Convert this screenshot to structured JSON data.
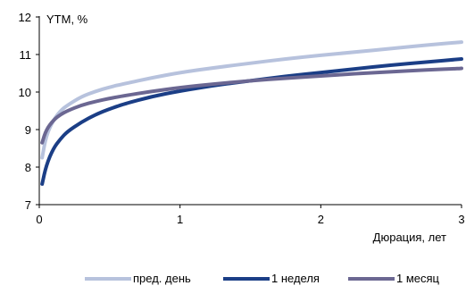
{
  "chart_data": {
    "type": "line",
    "ylabel": "YTM, %",
    "xlabel": "Дюрация, лет",
    "xlim": [
      0,
      3
    ],
    "ylim": [
      7,
      12
    ],
    "xticks": [
      "0",
      "1",
      "2",
      "3"
    ],
    "yticks": [
      "7",
      "8",
      "9",
      "10",
      "11",
      "12"
    ],
    "grid": false,
    "legend_position": "bottom",
    "series": [
      {
        "name": "пред. день",
        "color": "#b7c2dd",
        "x": [
          0.02,
          0.05,
          0.1,
          0.15,
          0.2,
          0.3,
          0.4,
          0.5,
          0.6,
          0.8,
          1.0,
          1.25,
          1.5,
          1.75,
          2.0,
          2.25,
          2.5,
          2.75,
          3.0
        ],
        "y": [
          8.25,
          8.85,
          9.25,
          9.5,
          9.65,
          9.88,
          10.02,
          10.13,
          10.22,
          10.38,
          10.52,
          10.65,
          10.77,
          10.88,
          10.98,
          11.07,
          11.16,
          11.25,
          11.33
        ]
      },
      {
        "name": "1 неделя",
        "color": "#1b3e86",
        "x": [
          0.02,
          0.05,
          0.1,
          0.15,
          0.2,
          0.3,
          0.4,
          0.5,
          0.6,
          0.8,
          1.0,
          1.25,
          1.5,
          1.75,
          2.0,
          2.25,
          2.5,
          2.75,
          3.0
        ],
        "y": [
          7.55,
          8.05,
          8.5,
          8.75,
          8.95,
          9.2,
          9.4,
          9.55,
          9.68,
          9.88,
          10.03,
          10.18,
          10.3,
          10.42,
          10.52,
          10.62,
          10.72,
          10.8,
          10.88
        ]
      },
      {
        "name": "1 месяц",
        "color": "#6b6792",
        "x": [
          0.02,
          0.05,
          0.1,
          0.15,
          0.2,
          0.3,
          0.4,
          0.5,
          0.6,
          0.8,
          1.0,
          1.25,
          1.5,
          1.75,
          2.0,
          2.25,
          2.5,
          2.75,
          3.0
        ],
        "y": [
          8.65,
          9.0,
          9.25,
          9.4,
          9.5,
          9.65,
          9.75,
          9.83,
          9.9,
          10.02,
          10.12,
          10.22,
          10.3,
          10.37,
          10.43,
          10.49,
          10.54,
          10.59,
          10.63
        ]
      }
    ]
  }
}
